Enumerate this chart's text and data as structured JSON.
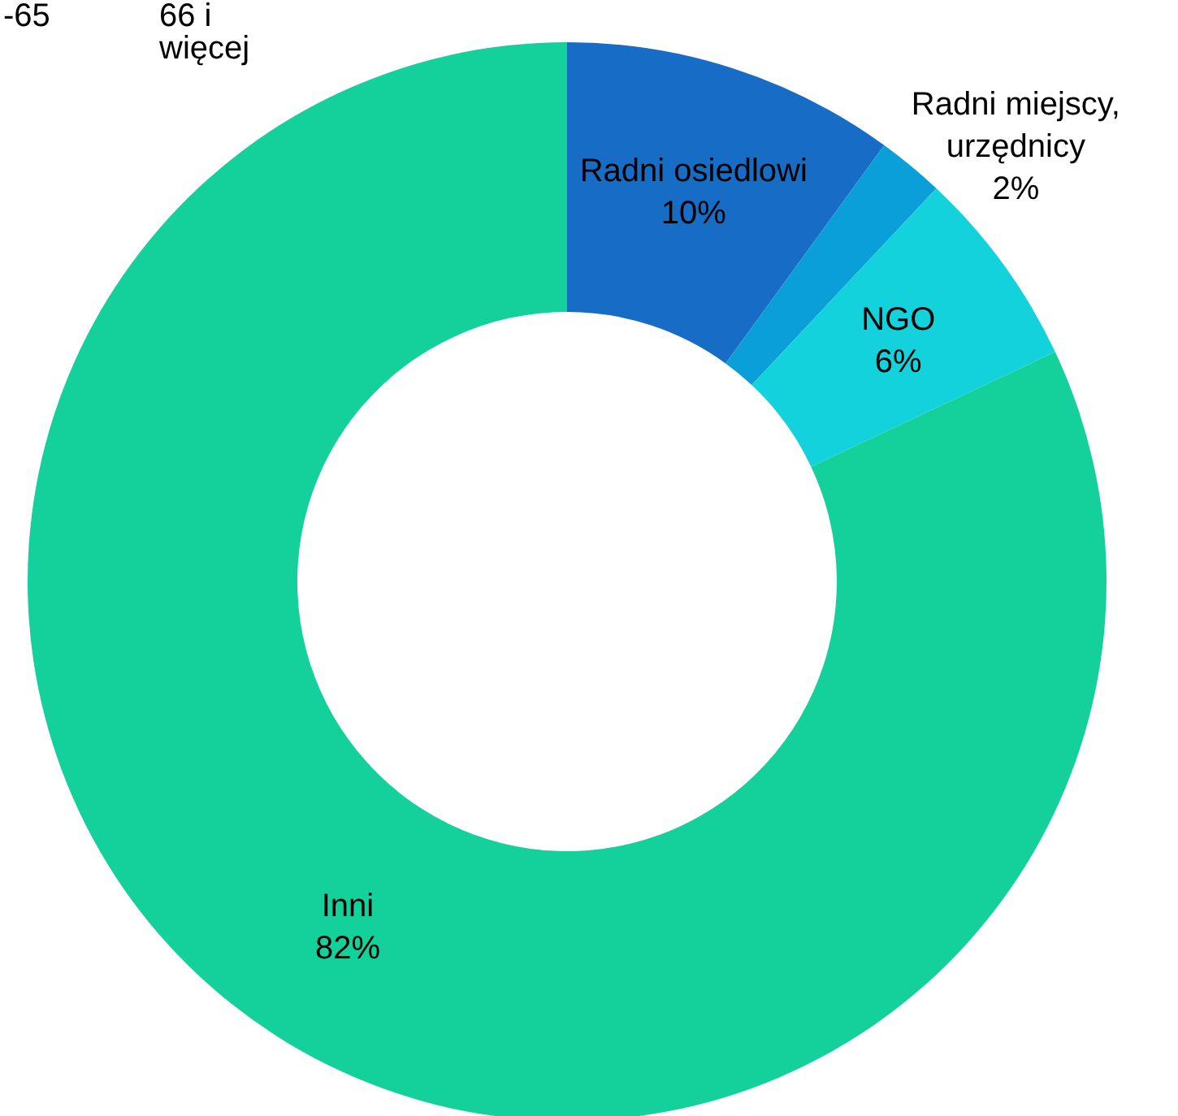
{
  "chart_data": {
    "type": "donut",
    "categories": [
      "Radni osiedlowi",
      "Radni miejscy,\nurzędnicy",
      "NGO",
      "Inni"
    ],
    "values": [
      10,
      2,
      6,
      82
    ],
    "colors": [
      "#176dc6",
      "#0a9fd9",
      "#14d2dc",
      "#14d09b"
    ],
    "value_labels": [
      "10%",
      "2%",
      "6%",
      "82%"
    ],
    "annotations": [
      "-65",
      "66 i\nwięcej"
    ],
    "legend": false
  }
}
